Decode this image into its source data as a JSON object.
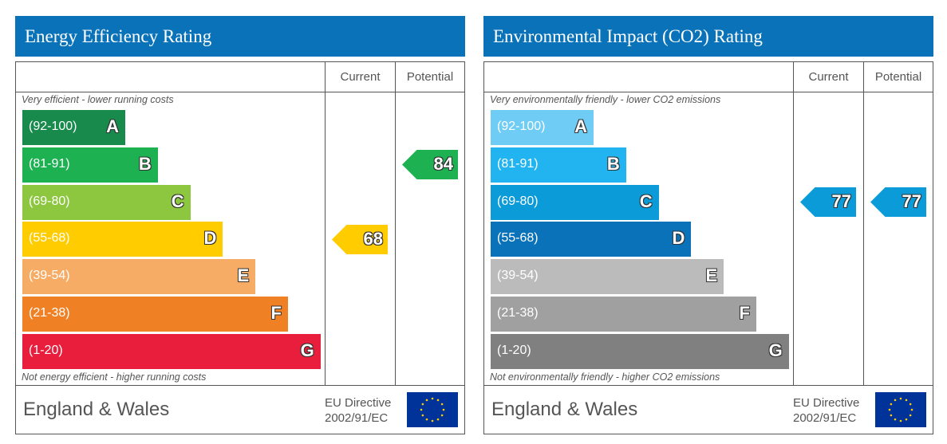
{
  "footer": {
    "region": "England & Wales",
    "directive_line1": "EU Directive",
    "directive_line2": "2002/91/EC",
    "flag_icon": "eu-flag-icon"
  },
  "columns": {
    "current": "Current",
    "potential": "Potential"
  },
  "chart_data": [
    {
      "type": "bar",
      "title": "Energy Efficiency Rating",
      "top_caption": "Very efficient - lower running costs",
      "bottom_caption": "Not energy efficient - higher running costs",
      "bands": [
        {
          "range": "(92-100)",
          "letter": "A",
          "color": "#178a4c"
        },
        {
          "range": "(81-91)",
          "letter": "B",
          "color": "#1db152"
        },
        {
          "range": "(69-80)",
          "letter": "C",
          "color": "#8dc63f"
        },
        {
          "range": "(55-68)",
          "letter": "D",
          "color": "#ffcc00"
        },
        {
          "range": "(39-54)",
          "letter": "E",
          "color": "#f7ac66"
        },
        {
          "range": "(21-38)",
          "letter": "F",
          "color": "#f08024"
        },
        {
          "range": "(1-20)",
          "letter": "G",
          "color": "#e91d3c"
        }
      ],
      "current": {
        "value": 68,
        "band": "D",
        "color": "#ffcc00"
      },
      "potential": {
        "value": 84,
        "band": "B",
        "color": "#1db152"
      }
    },
    {
      "type": "bar",
      "title": "Environmental Impact (CO2) Rating",
      "top_caption": "Very environmentally friendly - lower CO2 emissions",
      "bottom_caption": "Not environmentally friendly - higher CO2 emissions",
      "bands": [
        {
          "range": "(92-100)",
          "letter": "A",
          "color": "#6fcdf5"
        },
        {
          "range": "(81-91)",
          "letter": "B",
          "color": "#22b4f0"
        },
        {
          "range": "(69-80)",
          "letter": "C",
          "color": "#0a9bd8"
        },
        {
          "range": "(55-68)",
          "letter": "D",
          "color": "#0a72b9"
        },
        {
          "range": "(39-54)",
          "letter": "E",
          "color": "#bbbbbb"
        },
        {
          "range": "(21-38)",
          "letter": "F",
          "color": "#a0a0a0"
        },
        {
          "range": "(1-20)",
          "letter": "G",
          "color": "#808080"
        }
      ],
      "current": {
        "value": 77,
        "band": "C",
        "color": "#0a9bd8"
      },
      "potential": {
        "value": 77,
        "band": "C",
        "color": "#0a9bd8"
      }
    }
  ]
}
